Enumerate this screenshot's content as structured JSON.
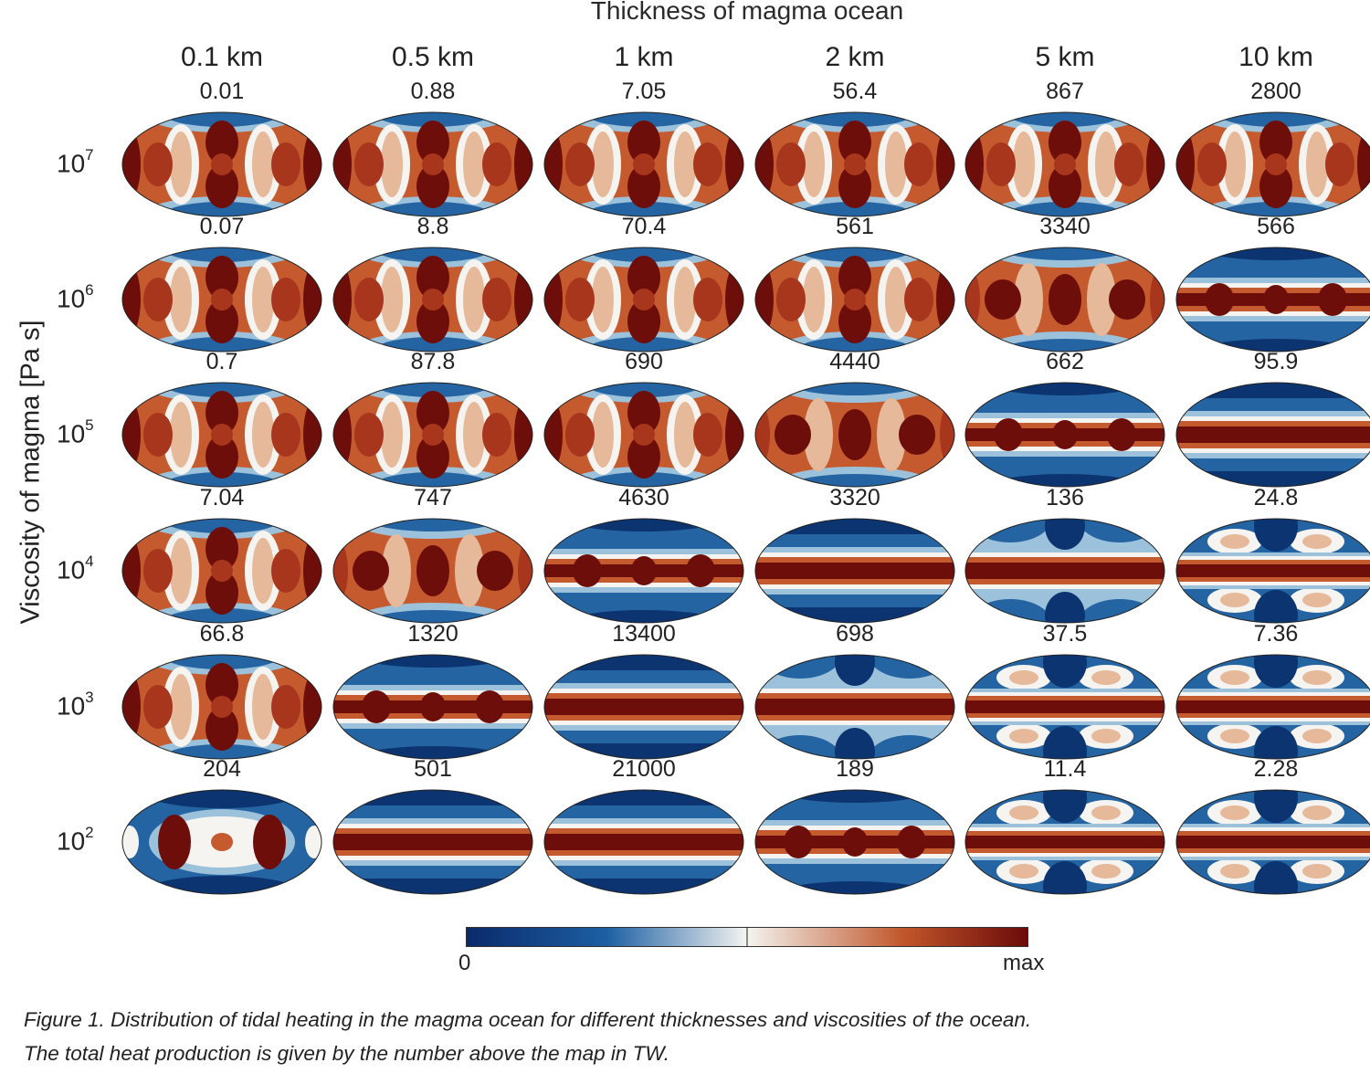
{
  "figure": {
    "top_title": "Thickness of magma ocean",
    "y_axis_label": "Viscosity of magma [Pa s]",
    "caption_line1": "Figure 1. Distribution of tidal heating in the magma ocean for different thicknesses and viscosities of the ocean.",
    "caption_line2": "The total heat production is given by the number above the map in TW."
  },
  "colorbar": {
    "min_label": "0",
    "max_label": "max",
    "colors": [
      "#0a2a6a",
      "#1d5fa3",
      "#f4f4f0",
      "#c0562a",
      "#6b0a0a"
    ]
  },
  "chart_data": {
    "type": "heatmap",
    "title": "Thickness of magma ocean",
    "xlabel": "Thickness of magma ocean",
    "ylabel": "Viscosity of magma [Pa s]",
    "columns": [
      "0.1 km",
      "0.5 km",
      "1 km",
      "2 km",
      "5 km",
      "10 km"
    ],
    "rows": [
      {
        "label_base": "10",
        "label_exp": "7",
        "values": [
          "0.01",
          "0.88",
          "7.05",
          "56.4",
          "867",
          "2800"
        ],
        "patterns": [
          "A",
          "A",
          "A",
          "A",
          "A",
          "A"
        ]
      },
      {
        "label_base": "10",
        "label_exp": "6",
        "values": [
          "0.07",
          "8.8",
          "70.4",
          "561",
          "3340",
          "566"
        ],
        "patterns": [
          "A",
          "A",
          "A",
          "A",
          "B",
          "C"
        ]
      },
      {
        "label_base": "10",
        "label_exp": "5",
        "values": [
          "0.7",
          "87.8",
          "690",
          "4440",
          "662",
          "95.9"
        ],
        "patterns": [
          "A",
          "A",
          "A",
          "B",
          "C",
          "D"
        ]
      },
      {
        "label_base": "10",
        "label_exp": "4",
        "values": [
          "7.04",
          "747",
          "4630",
          "3320",
          "136",
          "24.8"
        ],
        "patterns": [
          "A",
          "B",
          "C",
          "D",
          "E",
          "F"
        ]
      },
      {
        "label_base": "10",
        "label_exp": "3",
        "values": [
          "66.8",
          "1320",
          "13400",
          "698",
          "37.5",
          "7.36"
        ],
        "patterns": [
          "A",
          "C",
          "D",
          "E",
          "F",
          "F"
        ]
      },
      {
        "label_base": "10",
        "label_exp": "2",
        "values": [
          "204",
          "501",
          "21000",
          "189",
          "11.4",
          "2.28"
        ],
        "patterns": [
          "G",
          "D",
          "D",
          "C",
          "F",
          "F"
        ]
      }
    ],
    "colorbar_range": [
      "0",
      "max"
    ]
  }
}
